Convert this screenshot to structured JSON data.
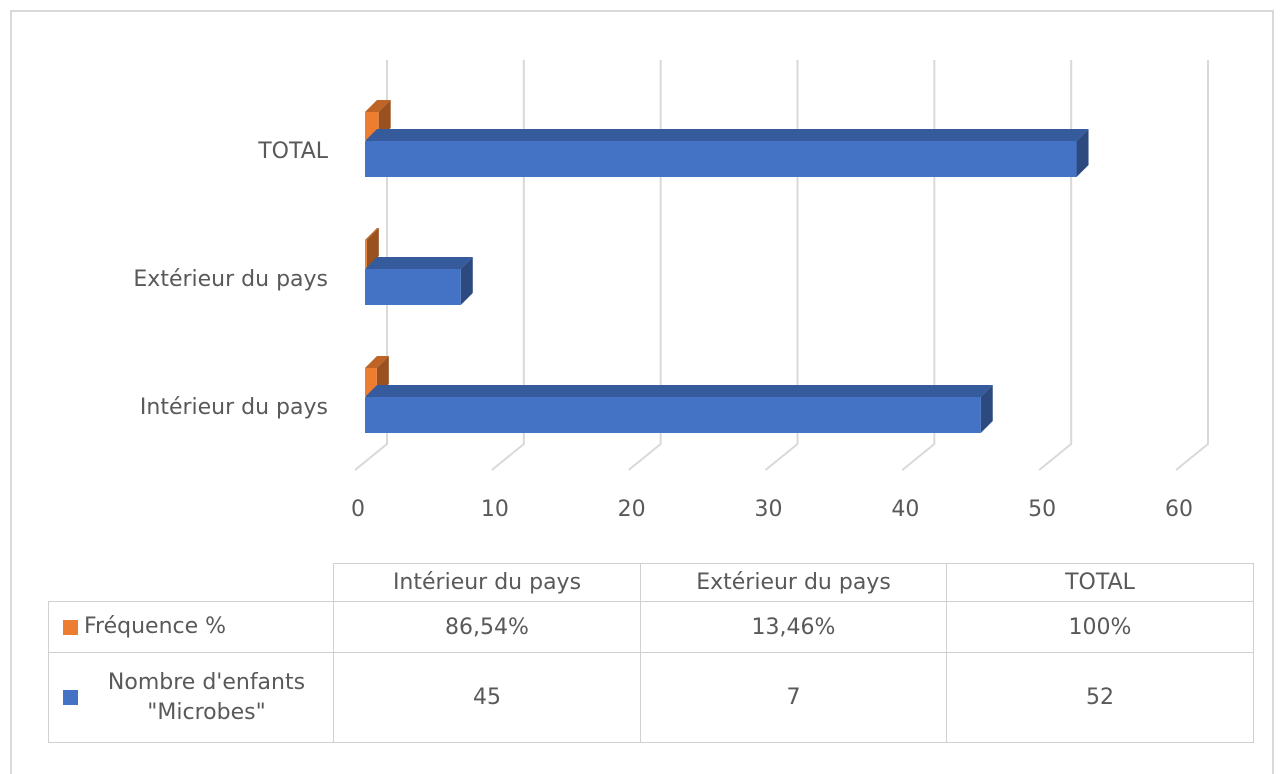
{
  "chart_data": {
    "type": "bar",
    "categories": [
      "Intérieur du pays",
      "Extérieur du pays",
      "TOTAL"
    ],
    "series": [
      {
        "name": "Fréquence %",
        "color": "#ed7d31",
        "values": [
          0.8654,
          0.1346,
          1
        ],
        "value_labels": [
          "86,54%",
          "13,46%",
          "100%"
        ]
      },
      {
        "name": "Nombre d'enfants \"Microbes\"",
        "color": "#4472c4",
        "values": [
          45,
          7,
          52
        ]
      }
    ],
    "xlim": [
      0,
      60
    ],
    "xticks": [
      0,
      10,
      20,
      30,
      40,
      50,
      60
    ],
    "grid": true
  }
}
